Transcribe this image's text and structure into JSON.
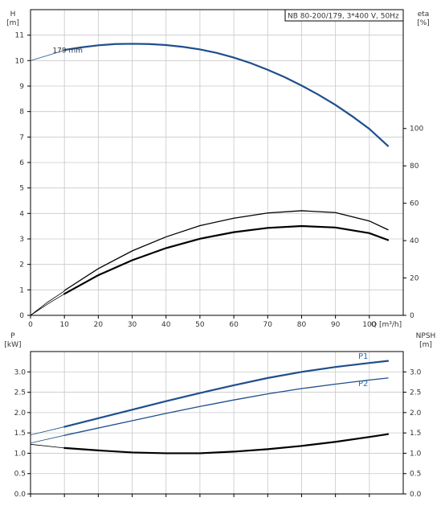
{
  "chart_data": [
    {
      "type": "line",
      "title": "NB 80-200/179, 3*400 V, 50Hz",
      "left_axis": {
        "label": "H",
        "unit": "[m]",
        "range": [
          0,
          12
        ],
        "ticks": [
          0,
          1,
          2,
          3,
          4,
          5,
          6,
          7,
          8,
          9,
          10,
          11
        ]
      },
      "right_axis": {
        "label": "eta",
        "unit": "[%]",
        "range": [
          0,
          163.6
        ],
        "ticks": [
          0,
          20,
          40,
          60,
          80,
          100
        ]
      },
      "x_axis": {
        "label": "Q [m³/h]",
        "range": [
          0,
          110
        ],
        "ticks": [
          0,
          10,
          20,
          30,
          40,
          50,
          60,
          70,
          80,
          90,
          100
        ]
      },
      "grid": true,
      "series": [
        {
          "name": "179 mm",
          "axis": "left",
          "color": "#1f4e8c",
          "x_dashed": [
            0,
            5,
            10
          ],
          "y_dashed": [
            10.0,
            10.2,
            10.4
          ],
          "x": [
            10,
            15,
            20,
            25,
            30,
            35,
            40,
            45,
            50,
            55,
            60,
            65,
            70,
            75,
            80,
            85,
            90,
            95,
            100,
            105.5
          ],
          "y": [
            10.42,
            10.52,
            10.6,
            10.65,
            10.66,
            10.65,
            10.61,
            10.54,
            10.44,
            10.3,
            10.12,
            9.9,
            9.64,
            9.35,
            9.02,
            8.66,
            8.26,
            7.81,
            7.32,
            6.65
          ]
        },
        {
          "axis": "right",
          "color": "#000000",
          "x_dashed": [
            0,
            5,
            10
          ],
          "y_dashed": [
            0,
            7,
            13
          ],
          "x": [
            10,
            20,
            30,
            40,
            50,
            60,
            70,
            80,
            90,
            100,
            105.5
          ],
          "y": [
            13.3,
            25,
            34.5,
            42,
            48,
            52,
            54.8,
            56.0,
            55,
            50.5,
            45.8
          ]
        },
        {
          "axis": "right",
          "color": "#000000",
          "x_dashed": [
            0,
            5,
            10
          ],
          "y_dashed": [
            0,
            6,
            11.5
          ],
          "x": [
            10,
            20,
            30,
            40,
            50,
            60,
            70,
            80,
            90,
            100,
            105.5
          ],
          "y": [
            11.5,
            21.5,
            29.5,
            36,
            41,
            44.5,
            46.8,
            47.8,
            47,
            44,
            40.3
          ]
        }
      ]
    },
    {
      "type": "line",
      "left_axis": {
        "label": "P",
        "unit": "[kW]",
        "range": [
          0,
          3.5
        ],
        "ticks": [
          "0.0",
          "0.5",
          "1.0",
          "1.5",
          "2.0",
          "2.5",
          "3.0"
        ]
      },
      "right_axis": {
        "label": "NPSH",
        "unit": "[m]",
        "range": [
          0,
          3.5
        ],
        "ticks": [
          "0.0",
          "0.5",
          "1.0",
          "1.5",
          "2.0",
          "2.5",
          "3.0"
        ]
      },
      "x_axis": {
        "range": [
          0,
          110
        ]
      },
      "grid": true,
      "series": [
        {
          "name": "P1",
          "axis": "left",
          "color": "#1f4e8c",
          "x_dashed": [
            0,
            10
          ],
          "y_dashed": [
            1.45,
            1.65
          ],
          "x": [
            10,
            20,
            30,
            40,
            50,
            60,
            70,
            80,
            90,
            100,
            105.5
          ],
          "y": [
            1.65,
            1.86,
            2.07,
            2.28,
            2.48,
            2.67,
            2.85,
            3.0,
            3.12,
            3.22,
            3.27
          ]
        },
        {
          "name": "P2",
          "axis": "left",
          "color": "#1f4e8c",
          "x_dashed": [
            0,
            10
          ],
          "y_dashed": [
            1.25,
            1.44
          ],
          "x": [
            10,
            20,
            30,
            40,
            50,
            60,
            70,
            80,
            90,
            100,
            105.5
          ],
          "y": [
            1.44,
            1.62,
            1.8,
            1.98,
            2.15,
            2.31,
            2.46,
            2.59,
            2.7,
            2.8,
            2.85
          ]
        },
        {
          "axis": "right",
          "color": "#000000",
          "x_dashed": [
            0,
            10
          ],
          "y_dashed": [
            1.22,
            1.13
          ],
          "x": [
            10,
            20,
            30,
            40,
            50,
            60,
            70,
            80,
            90,
            100,
            105.5
          ],
          "y": [
            1.13,
            1.07,
            1.02,
            1.0,
            1.0,
            1.04,
            1.1,
            1.18,
            1.28,
            1.4,
            1.47
          ]
        }
      ]
    }
  ]
}
